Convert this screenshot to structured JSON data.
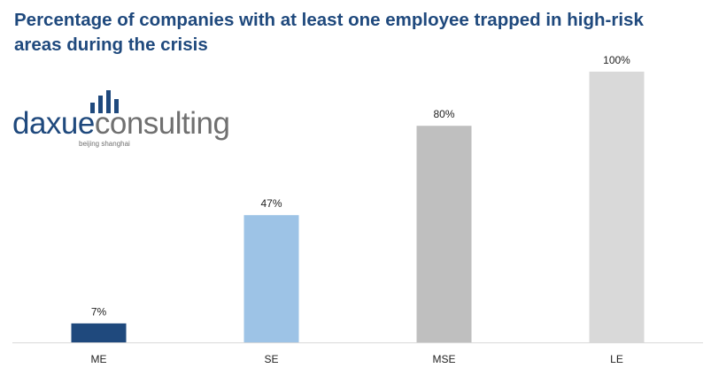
{
  "chart_data": {
    "type": "bar",
    "title": "Percentage of companies with at least one employee trapped in high-risk areas during the crisis",
    "categories": [
      "ME",
      "SE",
      "MSE",
      "LE"
    ],
    "values": [
      7,
      47,
      80,
      100
    ],
    "data_labels": [
      "7%",
      "47%",
      "80%",
      "100%"
    ],
    "colors": [
      "#1f497d",
      "#9dc3e6",
      "#bfbfbf",
      "#d9d9d9"
    ],
    "xlabel": "",
    "ylabel": "",
    "ylim": [
      0,
      100
    ],
    "grid": false,
    "legend": "none"
  },
  "logo": {
    "word_part1": "daxue",
    "word_part2": "consulting",
    "tagline": "beijing shanghai",
    "primary_color": "#1f497d",
    "secondary_color": "#707070"
  }
}
